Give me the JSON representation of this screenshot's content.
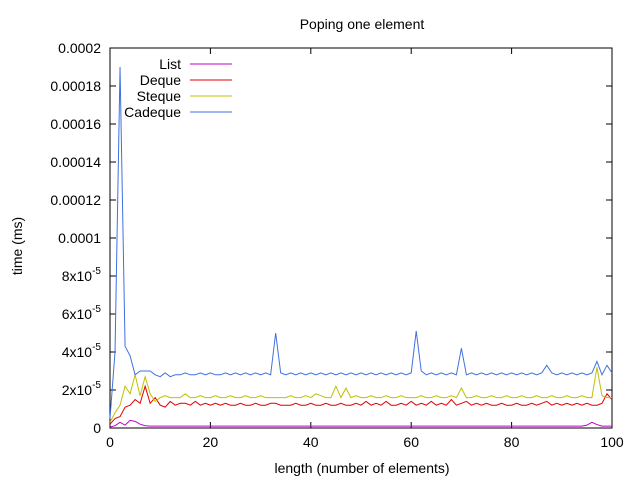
{
  "chart_data": {
    "type": "line",
    "title": "Poping one element",
    "xlabel": "length (number of elements)",
    "ylabel": "time (ms)",
    "xlim": [
      0,
      100
    ],
    "ylim": [
      0,
      0.0002
    ],
    "grid": false,
    "legend_position": "top-left",
    "x_ticks": [
      {
        "value": 0,
        "label": "0"
      },
      {
        "value": 20,
        "label": "20"
      },
      {
        "value": 40,
        "label": "40"
      },
      {
        "value": 60,
        "label": "60"
      },
      {
        "value": 80,
        "label": "80"
      },
      {
        "value": 100,
        "label": "100"
      }
    ],
    "y_ticks": [
      {
        "value": 0,
        "label": "0"
      },
      {
        "value": 2e-05,
        "label": "2x10",
        "exp": "-5"
      },
      {
        "value": 4e-05,
        "label": "4x10",
        "exp": "-5"
      },
      {
        "value": 6e-05,
        "label": "6x10",
        "exp": "-5"
      },
      {
        "value": 8e-05,
        "label": "8x10",
        "exp": "-5"
      },
      {
        "value": 0.0001,
        "label": "0.0001"
      },
      {
        "value": 0.00012,
        "label": "0.00012"
      },
      {
        "value": 0.00014,
        "label": "0.00014"
      },
      {
        "value": 0.00016,
        "label": "0.00016"
      },
      {
        "value": 0.00018,
        "label": "0.00018"
      },
      {
        "value": 0.0002,
        "label": "0.0002"
      }
    ],
    "x": [
      0,
      1,
      2,
      3,
      4,
      5,
      6,
      7,
      8,
      9,
      10,
      11,
      12,
      13,
      14,
      15,
      16,
      17,
      18,
      19,
      20,
      21,
      22,
      23,
      24,
      25,
      26,
      27,
      28,
      29,
      30,
      31,
      32,
      33,
      34,
      35,
      36,
      37,
      38,
      39,
      40,
      41,
      42,
      43,
      44,
      45,
      46,
      47,
      48,
      49,
      50,
      51,
      52,
      53,
      54,
      55,
      56,
      57,
      58,
      59,
      60,
      61,
      62,
      63,
      64,
      65,
      66,
      67,
      68,
      69,
      70,
      71,
      72,
      73,
      74,
      75,
      76,
      77,
      78,
      79,
      80,
      81,
      82,
      83,
      84,
      85,
      86,
      87,
      88,
      89,
      90,
      91,
      92,
      93,
      94,
      95,
      96,
      97,
      98,
      99,
      100
    ],
    "series": [
      {
        "name": "List",
        "color": "#c000c0",
        "values": [
          5e-07,
          1.2e-06,
          3e-06,
          1.5e-06,
          4e-06,
          3.5e-06,
          2e-06,
          1.2e-06,
          1e-06,
          1e-06,
          1e-06,
          1e-06,
          1e-06,
          1e-06,
          1e-06,
          1e-06,
          1e-06,
          1e-06,
          1e-06,
          1e-06,
          1e-06,
          1e-06,
          1e-06,
          1e-06,
          1e-06,
          1e-06,
          1e-06,
          1e-06,
          1e-06,
          1e-06,
          1e-06,
          1e-06,
          1e-06,
          1e-06,
          1e-06,
          1e-06,
          1e-06,
          1e-06,
          1e-06,
          1e-06,
          1e-06,
          1e-06,
          1e-06,
          1e-06,
          1e-06,
          1e-06,
          1e-06,
          1e-06,
          1e-06,
          1e-06,
          1e-06,
          1e-06,
          1e-06,
          1e-06,
          1e-06,
          1e-06,
          1e-06,
          1e-06,
          1e-06,
          1e-06,
          1e-06,
          1e-06,
          1e-06,
          1e-06,
          1e-06,
          1e-06,
          1e-06,
          1e-06,
          1e-06,
          1e-06,
          1e-06,
          1e-06,
          1e-06,
          1e-06,
          1e-06,
          1e-06,
          1e-06,
          1e-06,
          1e-06,
          1e-06,
          1e-06,
          1e-06,
          1e-06,
          1e-06,
          1e-06,
          1e-06,
          1e-06,
          1e-06,
          1e-06,
          1e-06,
          1e-06,
          1e-06,
          1e-06,
          1e-06,
          1e-06,
          1.5e-06,
          3e-06,
          1.8e-06,
          1e-06,
          1e-06,
          1e-06
        ]
      },
      {
        "name": "Deque",
        "color": "#e00000",
        "values": [
          2e-06,
          5e-06,
          6e-06,
          1.1e-05,
          1.2e-05,
          1.5e-05,
          1.3e-05,
          2.2e-05,
          1.3e-05,
          1.6e-05,
          1.2e-05,
          1.1e-05,
          1.4e-05,
          1.2e-05,
          1.3e-05,
          1.3e-05,
          1.2e-05,
          1.4e-05,
          1.2e-05,
          1.3e-05,
          1.2e-05,
          1.3e-05,
          1.2e-05,
          1.3e-05,
          1.2e-05,
          1.2e-05,
          1.3e-05,
          1.2e-05,
          1.2e-05,
          1.3e-05,
          1.2e-05,
          1.2e-05,
          1.3e-05,
          1.3e-05,
          1.2e-05,
          1.2e-05,
          1.2e-05,
          1.3e-05,
          1.2e-05,
          1.2e-05,
          1.3e-05,
          1.2e-05,
          1.2e-05,
          1.3e-05,
          1.2e-05,
          1.2e-05,
          1.3e-05,
          1.2e-05,
          1.2e-05,
          1.3e-05,
          1.2e-05,
          1.4e-05,
          1.2e-05,
          1.3e-05,
          1.2e-05,
          1.4e-05,
          1.2e-05,
          1.2e-05,
          1.3e-05,
          1.2e-05,
          1.4e-05,
          1.2e-05,
          1.3e-05,
          1.2e-05,
          1.4e-05,
          1.2e-05,
          1.3e-05,
          1.2e-05,
          1.5e-05,
          1.2e-05,
          1.3e-05,
          1.4e-05,
          1.2e-05,
          1.3e-05,
          1.2e-05,
          1.3e-05,
          1.2e-05,
          1.2e-05,
          1.3e-05,
          1.2e-05,
          1.2e-05,
          1.3e-05,
          1.2e-05,
          1.2e-05,
          1.3e-05,
          1.2e-05,
          1.3e-05,
          1.4e-05,
          1.2e-05,
          1.3e-05,
          1.2e-05,
          1.3e-05,
          1.2e-05,
          1.3e-05,
          1.2e-05,
          1.3e-05,
          1.2e-05,
          1.2e-05,
          1.3e-05,
          1.8e-05,
          1.5e-05
        ]
      },
      {
        "name": "Steque",
        "color": "#c0c000",
        "values": [
          3e-06,
          8e-06,
          1.2e-05,
          2.2e-05,
          1.8e-05,
          2.8e-05,
          1.7e-05,
          2.7e-05,
          1.8e-05,
          1.4e-05,
          1.6e-05,
          1.7e-05,
          1.6e-05,
          1.6e-05,
          1.6e-05,
          1.8e-05,
          1.6e-05,
          1.6e-05,
          1.7e-05,
          1.6e-05,
          1.6e-05,
          1.7e-05,
          1.6e-05,
          1.6e-05,
          1.7e-05,
          1.6e-05,
          1.6e-05,
          1.7e-05,
          1.6e-05,
          1.6e-05,
          1.7e-05,
          1.6e-05,
          1.6e-05,
          1.6e-05,
          1.6e-05,
          1.6e-05,
          1.7e-05,
          1.6e-05,
          1.6e-05,
          1.7e-05,
          1.6e-05,
          1.8e-05,
          1.7e-05,
          1.6e-05,
          1.6e-05,
          2.2e-05,
          1.6e-05,
          2.1e-05,
          1.6e-05,
          1.7e-05,
          1.6e-05,
          1.6e-05,
          1.7e-05,
          1.6e-05,
          1.6e-05,
          1.7e-05,
          1.6e-05,
          1.6e-05,
          1.7e-05,
          1.6e-05,
          1.6e-05,
          1.6e-05,
          1.7e-05,
          1.6e-05,
          1.6e-05,
          1.7e-05,
          1.6e-05,
          1.6e-05,
          1.7e-05,
          1.6e-05,
          2.1e-05,
          1.6e-05,
          1.6e-05,
          1.7e-05,
          1.6e-05,
          1.6e-05,
          1.7e-05,
          1.6e-05,
          1.6e-05,
          1.7e-05,
          1.6e-05,
          1.6e-05,
          1.7e-05,
          1.6e-05,
          1.6e-05,
          1.7e-05,
          1.6e-05,
          1.6e-05,
          1.7e-05,
          1.6e-05,
          1.6e-05,
          1.7e-05,
          1.6e-05,
          1.6e-05,
          1.7e-05,
          1.6e-05,
          1.6e-05,
          3.2e-05,
          1.7e-05,
          1.6e-05,
          1.6e-05
        ]
      },
      {
        "name": "Cadeque",
        "color": "#4070e0",
        "values": [
          5e-06,
          4e-05,
          0.00019,
          4.3e-05,
          3.8e-05,
          2.8e-05,
          3e-05,
          3e-05,
          3e-05,
          2.8e-05,
          2.7e-05,
          2.9e-05,
          2.7e-05,
          2.8e-05,
          2.8e-05,
          2.9e-05,
          2.8e-05,
          2.8e-05,
          2.9e-05,
          2.8e-05,
          2.9e-05,
          2.8e-05,
          2.8e-05,
          2.9e-05,
          2.8e-05,
          2.9e-05,
          2.8e-05,
          2.9e-05,
          2.8e-05,
          2.9e-05,
          2.8e-05,
          2.9e-05,
          2.8e-05,
          5e-05,
          2.9e-05,
          2.8e-05,
          2.9e-05,
          2.8e-05,
          2.9e-05,
          2.8e-05,
          2.9e-05,
          2.8e-05,
          2.9e-05,
          2.8e-05,
          2.9e-05,
          2.8e-05,
          2.9e-05,
          2.8e-05,
          2.9e-05,
          2.8e-05,
          2.9e-05,
          2.8e-05,
          2.9e-05,
          2.8e-05,
          2.9e-05,
          2.8e-05,
          2.9e-05,
          2.8e-05,
          2.9e-05,
          2.8e-05,
          2.9e-05,
          5.1e-05,
          3e-05,
          2.8e-05,
          2.9e-05,
          2.8e-05,
          2.9e-05,
          2.8e-05,
          2.9e-05,
          2.8e-05,
          4.2e-05,
          2.8e-05,
          2.9e-05,
          2.8e-05,
          2.9e-05,
          2.8e-05,
          2.9e-05,
          2.8e-05,
          2.9e-05,
          2.8e-05,
          2.9e-05,
          2.8e-05,
          2.9e-05,
          2.8e-05,
          2.9e-05,
          2.8e-05,
          2.9e-05,
          3.3e-05,
          2.9e-05,
          2.8e-05,
          2.9e-05,
          2.8e-05,
          2.9e-05,
          2.8e-05,
          2.9e-05,
          2.8e-05,
          2.9e-05,
          3.5e-05,
          2.8e-05,
          3.3e-05,
          2.9e-05
        ]
      }
    ]
  }
}
